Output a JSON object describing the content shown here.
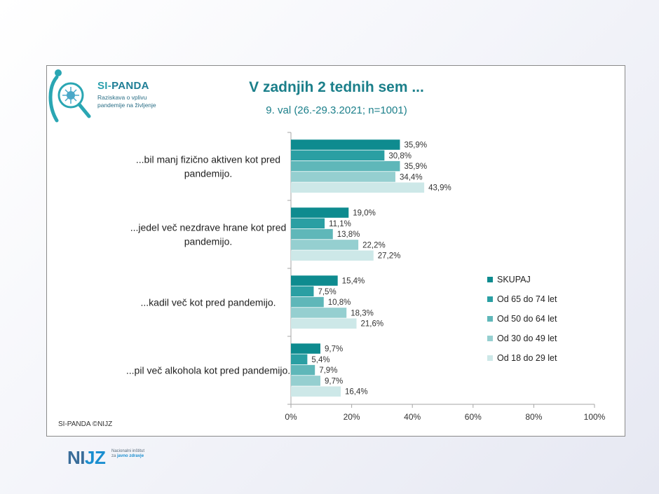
{
  "logo": {
    "brand_si": "SI-",
    "brand_panda": "PANDA",
    "subtitle_line1": "Raziskava o vplivu",
    "subtitle_line2": "pandemije na življenje"
  },
  "footer": {
    "credit": "SI-PANDA ©NIJZ"
  },
  "nijz": {
    "word_ni": "NI",
    "word_jz": "JZ",
    "desc_line1": "Nacionalni inštitut",
    "desc_line2": "za",
    "desc_line3": "javno zdravje"
  },
  "colors": {
    "series": [
      "#0e8b8f",
      "#2a9fa3",
      "#5fb7b9",
      "#95cfd0",
      "#cde8e8"
    ],
    "title": "#1b7f8a",
    "axis": "#a6a6a6"
  },
  "chart_data": {
    "type": "bar",
    "orientation": "horizontal",
    "title": "V zadnjih 2 tednih sem ...",
    "subtitle": "9. val (26.-29.3.2021; n=1001)",
    "categories": [
      [
        "...bil manj fizično aktiven kot pred",
        "pandemijo."
      ],
      [
        "...jedel več nezdrave hrane kot pred",
        "pandemijo."
      ],
      [
        "...kadil več kot pred pandemijo."
      ],
      [
        "...pil več alkohola kot pred pandemijo."
      ]
    ],
    "series": [
      {
        "name": "SKUPAJ",
        "values": [
          35.9,
          19.0,
          15.4,
          9.7
        ],
        "labels": [
          "35,9%",
          "19,0%",
          "15,4%",
          "9,7%"
        ]
      },
      {
        "name": "Od 65 do 74 let",
        "values": [
          30.8,
          11.1,
          7.5,
          5.4
        ],
        "labels": [
          "30,8%",
          "11,1%",
          "7,5%",
          "5,4%"
        ]
      },
      {
        "name": "Od 50 do 64 let",
        "values": [
          35.9,
          13.8,
          10.8,
          7.9
        ],
        "labels": [
          "35,9%",
          "13,8%",
          "10,8%",
          "7,9%"
        ]
      },
      {
        "name": "Od 30 do 49 let",
        "values": [
          34.4,
          22.2,
          18.3,
          9.7
        ],
        "labels": [
          "34,4%",
          "22,2%",
          "18,3%",
          "9,7%"
        ]
      },
      {
        "name": "Od 18 do 29 let",
        "values": [
          43.9,
          27.2,
          21.6,
          16.4
        ],
        "labels": [
          "43,9%",
          "27,2%",
          "21,6%",
          "16,4%"
        ]
      }
    ],
    "xlim": [
      0,
      100
    ],
    "xticks": [
      0,
      20,
      40,
      60,
      80,
      100
    ],
    "xtick_labels": [
      "0%",
      "20%",
      "40%",
      "60%",
      "80%",
      "100%"
    ],
    "legend_position": "right"
  }
}
